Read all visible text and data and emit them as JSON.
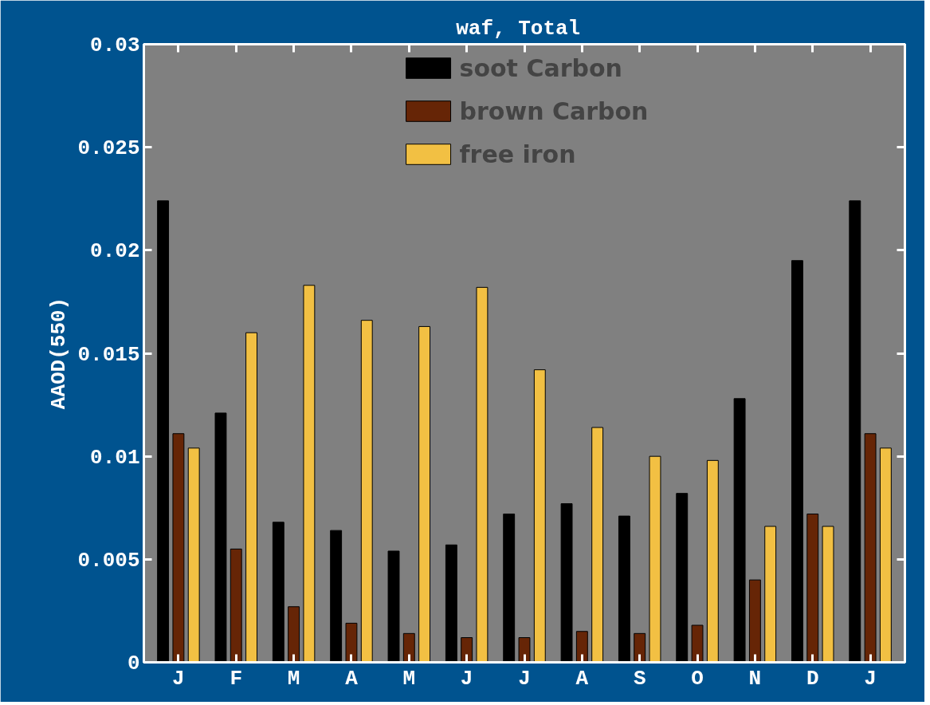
{
  "chart_data": {
    "type": "bar",
    "title": "waf,  Total",
    "ylabel": "AAOD(550)",
    "categories": [
      "J",
      "F",
      "M",
      "A",
      "M",
      "J",
      "J",
      "A",
      "S",
      "O",
      "N",
      "D",
      "J"
    ],
    "series": [
      {
        "name": "soot Carbon",
        "color": "#000000",
        "values": [
          0.0224,
          0.0121,
          0.0068,
          0.0064,
          0.0054,
          0.0057,
          0.0072,
          0.0077,
          0.0071,
          0.0082,
          0.0128,
          0.0195,
          0.0224
        ]
      },
      {
        "name": "brown Carbon",
        "color": "#662506",
        "values": [
          0.0111,
          0.0055,
          0.0027,
          0.0019,
          0.0014,
          0.0012,
          0.0012,
          0.0015,
          0.0014,
          0.0018,
          0.004,
          0.0072,
          0.0111
        ]
      },
      {
        "name": "free iron",
        "color": "#f2c043",
        "values": [
          0.0104,
          0.016,
          0.0183,
          0.0166,
          0.0163,
          0.0182,
          0.0142,
          0.0114,
          0.01,
          0.0098,
          0.0066,
          0.0066,
          0.0104
        ]
      }
    ],
    "ylim": [
      0,
      0.03
    ],
    "yticks": [
      0,
      0.005,
      0.01,
      0.015,
      0.02,
      0.025,
      0.03
    ],
    "grid": false,
    "legend": "top"
  }
}
